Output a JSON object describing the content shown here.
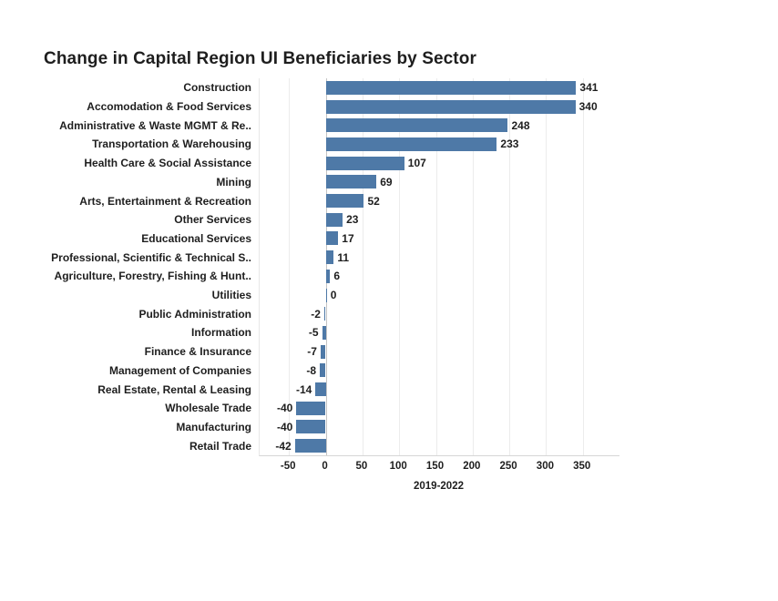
{
  "title": "Change in Capital Region UI Beneficiaries by Sector",
  "chart_data": {
    "type": "bar",
    "orientation": "horizontal",
    "title": "Change in Capital Region UI Beneficiaries by Sector",
    "xlabel": "2019-2022",
    "categories": [
      "Construction",
      "Accomodation & Food Services",
      "Administrative & Waste MGMT & Re..",
      "Transportation & Warehousing",
      "Health Care & Social Assistance",
      "Mining",
      "Arts, Entertainment & Recreation",
      "Other Services",
      "Educational Services",
      "Professional, Scientific & Technical S..",
      "Agriculture, Forestry, Fishing & Hunt..",
      "Utilities",
      "Public Administration",
      "Information",
      "Finance & Insurance",
      "Management of Companies",
      "Real Estate, Rental & Leasing",
      "Wholesale Trade",
      "Manufacturing",
      "Retail Trade"
    ],
    "values": [
      341,
      340,
      248,
      233,
      107,
      69,
      52,
      23,
      17,
      11,
      6,
      0,
      -2,
      -5,
      -7,
      -8,
      -14,
      -40,
      -40,
      -42
    ],
    "xticks": [
      -50,
      0,
      50,
      100,
      150,
      200,
      250,
      300,
      350
    ],
    "xlim": [
      -90,
      400
    ],
    "grid": true,
    "legend": "none",
    "bar_color": "#4e79a7",
    "colors": {
      "text": "#1e1e1e",
      "gridline": "#ececec",
      "zero_line": "#c4c4c4",
      "axis_line": "#d6d6d6",
      "background": "#ffffff"
    }
  }
}
